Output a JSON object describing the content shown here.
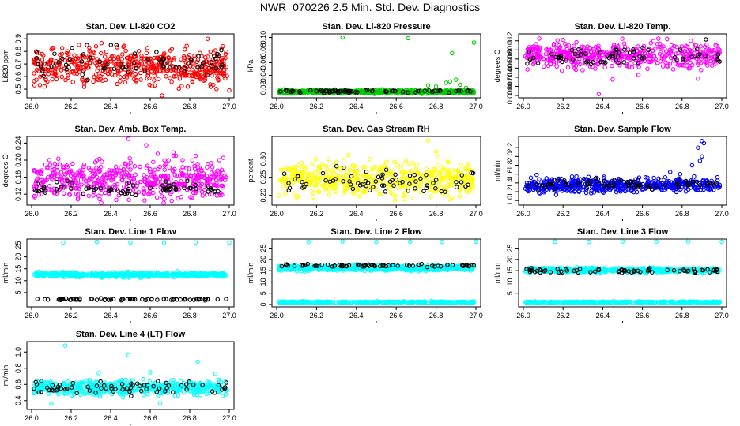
{
  "title": "NWR_070226  2.5 Min. Std. Dev. Diagnostics",
  "chart_data": [
    {
      "type": "scatter",
      "title": "Stan. Dev. Li-820 CO2",
      "ylabel": "Li820 ppm",
      "color": "#ff0000",
      "xlim": [
        26.0,
        27.0
      ],
      "ylim": [
        0.45,
        0.92
      ],
      "yticks": [
        0.5,
        0.6,
        0.7,
        0.8,
        0.9
      ],
      "ytick_labels": [
        "0.5",
        "0.6",
        "0.7",
        "0.8",
        "0.9"
      ],
      "xticks": [
        26.0,
        26.2,
        26.4,
        26.6,
        26.8,
        27.0
      ],
      "xtick_labels": [
        "26.0",
        "26.2",
        "26.4",
        "26.6",
        "26.8",
        "27.0"
      ],
      "series": [
        {
          "name": "main",
          "center": 0.68,
          "spread": 0.07,
          "extras": [
            [
              26.08,
              0.56
            ],
            [
              26.33,
              0.58
            ],
            [
              26.62,
              0.57
            ],
            [
              26.66,
              0.45
            ],
            [
              26.79,
              0.52
            ],
            [
              26.89,
              0.9
            ],
            [
              27.0,
              0.49
            ]
          ]
        },
        {
          "name": "subset",
          "center": 0.7,
          "spread": 0.06,
          "extras": [
            [
              26.28,
              0.85
            ],
            [
              26.96,
              0.81
            ]
          ]
        }
      ]
    },
    {
      "type": "scatter",
      "title": "Stan. Dev. Li-820 Pressure",
      "ylabel": "kPa",
      "color": "#00cc00",
      "xlim": [
        26.0,
        27.0
      ],
      "ylim": [
        0.008,
        0.102
      ],
      "yticks": [
        0.02,
        0.04,
        0.06,
        0.08,
        0.1
      ],
      "ytick_labels": [
        "0.02",
        "0.04",
        "0.06",
        "0.08",
        "0.10"
      ],
      "xticks": [
        26.0,
        26.2,
        26.4,
        26.6,
        26.8,
        27.0
      ],
      "xtick_labels": [
        "26.0",
        "26.2",
        "26.4",
        "26.6",
        "26.8",
        "27.0"
      ],
      "series": [
        {
          "name": "main",
          "center": 0.014,
          "spread": 0.0015,
          "extras": [
            [
              26.33,
              0.1
            ],
            [
              26.66,
              0.099
            ],
            [
              26.88,
              0.075
            ],
            [
              26.99,
              0.092
            ],
            [
              26.85,
              0.028
            ],
            [
              26.9,
              0.033
            ],
            [
              26.92,
              0.025
            ],
            [
              26.8,
              0.022
            ],
            [
              26.76,
              0.024
            ],
            [
              26.95,
              0.02
            ],
            [
              26.87,
              0.03
            ]
          ]
        },
        {
          "name": "subset",
          "center": 0.0145,
          "spread": 0.001,
          "extras": []
        }
      ]
    },
    {
      "type": "scatter",
      "title": "Stan. Dev. Li-820 Temp.",
      "ylabel": "degrees C",
      "color": "#ff00ff",
      "xlim": [
        26.0,
        27.0
      ],
      "ylim": [
        0.0,
        0.013
      ],
      "yticks": [
        0.0,
        0.002,
        0.004,
        0.006,
        0.008,
        0.01,
        0.012
      ],
      "ytick_labels": [
        "0.000",
        "0.002",
        "0.004",
        "0.006",
        "0.008",
        "0.010",
        "0.012"
      ],
      "xticks": [
        26.0,
        26.2,
        26.4,
        26.6,
        26.8,
        27.0
      ],
      "xtick_labels": [
        "26.0",
        "26.2",
        "26.4",
        "26.6",
        "26.8",
        "27.0"
      ],
      "series": [
        {
          "name": "main",
          "center": 0.0088,
          "spread": 0.0013,
          "extras": [
            [
              26.38,
              0.0003
            ],
            [
              26.45,
              0.0035
            ],
            [
              26.58,
              0.0045
            ],
            [
              26.88,
              0.0037
            ],
            [
              26.08,
              0.0125
            ],
            [
              26.2,
              0.0122
            ]
          ]
        },
        {
          "name": "subset",
          "center": 0.0085,
          "spread": 0.001,
          "extras": [
            [
              26.92,
              0.0123
            ]
          ]
        }
      ]
    },
    {
      "type": "scatter",
      "title": "Stan. Dev. Amb. Box Temp.",
      "ylabel": "degrees C",
      "color": "#ff00ff",
      "xlim": [
        26.0,
        27.0
      ],
      "ylim": [
        0.1,
        0.25
      ],
      "yticks": [
        0.12,
        0.16,
        0.2,
        0.24
      ],
      "ytick_labels": [
        "0.12",
        "0.16",
        "0.20",
        "0.24"
      ],
      "xticks": [
        26.0,
        26.2,
        26.4,
        26.6,
        26.8,
        27.0
      ],
      "xtick_labels": [
        "26.0",
        "26.2",
        "26.4",
        "26.6",
        "26.8",
        "27.0"
      ],
      "series": [
        {
          "name": "main",
          "center": 0.155,
          "spread": 0.022,
          "extras": [
            [
              26.49,
              0.25
            ],
            [
              26.58,
              0.235
            ],
            [
              26.09,
              0.2
            ],
            [
              26.33,
              0.2
            ],
            [
              26.73,
              0.21
            ],
            [
              26.83,
              0.21
            ],
            [
              26.95,
              0.2
            ],
            [
              26.74,
              0.11
            ]
          ]
        },
        {
          "name": "subset",
          "center": 0.133,
          "spread": 0.008,
          "extras": []
        }
      ]
    },
    {
      "type": "scatter",
      "title": "Stan. Dev. Gas Stream RH",
      "ylabel": "percent",
      "color": "#ffff00",
      "xlim": [
        26.0,
        27.0
      ],
      "ylim": [
        0.18,
        0.355
      ],
      "yticks": [
        0.2,
        0.25,
        0.3
      ],
      "ytick_labels": [
        "0.20",
        "0.25",
        "0.30"
      ],
      "xticks": [
        26.0,
        26.2,
        26.4,
        26.6,
        26.8,
        27.0
      ],
      "xtick_labels": [
        "26.0",
        "26.2",
        "26.4",
        "26.6",
        "26.8",
        "27.0"
      ],
      "series": [
        {
          "name": "main",
          "center": 0.245,
          "spread": 0.022,
          "extras": [
            [
              26.76,
              0.35
            ],
            [
              26.8,
              0.32
            ],
            [
              26.26,
              0.3
            ],
            [
              26.87,
              0.19
            ],
            [
              26.64,
              0.19
            ]
          ]
        },
        {
          "name": "subset",
          "center": 0.24,
          "spread": 0.018,
          "extras": [
            [
              26.3,
              0.28
            ],
            [
              26.55,
              0.27
            ]
          ]
        }
      ]
    },
    {
      "type": "scatter",
      "title": "Stan. Dev. Sample Flow",
      "ylabel": "ml/min",
      "color": "#0000ff",
      "xlim": [
        26.0,
        27.0
      ],
      "ylim": [
        0.95,
        2.4
      ],
      "yticks": [
        1.0,
        1.2,
        1.4,
        1.6,
        1.8,
        2.0,
        2.2
      ],
      "ytick_labels": [
        "1.0",
        "1.2",
        "1.4",
        "1.6",
        "1.8",
        "2.0",
        "2.2"
      ],
      "xticks": [
        26.0,
        26.2,
        26.4,
        26.6,
        26.8,
        27.0
      ],
      "xtick_labels": [
        "26.0",
        "26.2",
        "26.4",
        "26.6",
        "26.8",
        "27.0"
      ],
      "series": [
        {
          "name": "main",
          "center": 1.35,
          "spread": 0.08,
          "extras": [
            [
              26.9,
              2.35
            ],
            [
              26.91,
              2.3
            ],
            [
              26.88,
              2.2
            ],
            [
              26.9,
              2.0
            ],
            [
              26.85,
              1.8
            ],
            [
              26.89,
              1.9
            ],
            [
              26.79,
              1.6
            ],
            [
              26.74,
              1.65
            ],
            [
              26.86,
              1.55
            ]
          ]
        },
        {
          "name": "subset",
          "center": 1.38,
          "spread": 0.06,
          "extras": []
        }
      ]
    },
    {
      "type": "scatter",
      "title": "Stan. Dev. Line 1 Flow",
      "ylabel": "ml/min",
      "color": "#00ffff",
      "xlim": [
        26.0,
        27.0
      ],
      "ylim": [
        0,
        26.5
      ],
      "yticks": [
        5,
        10,
        15,
        20,
        25
      ],
      "ytick_labels": [
        "5",
        "10",
        "15",
        "20",
        "25"
      ],
      "xticks": [
        26.0,
        26.2,
        26.4,
        26.6,
        26.8,
        27.0
      ],
      "xtick_labels": [
        "26.0",
        "26.2",
        "26.4",
        "26.6",
        "26.8",
        "27.0"
      ],
      "series": [
        {
          "name": "main",
          "center": 12.5,
          "spread": 0.5,
          "extras": [
            [
              26.16,
              26
            ],
            [
              26.33,
              26.3
            ],
            [
              26.5,
              26
            ],
            [
              26.67,
              25.8
            ],
            [
              26.83,
              26.1
            ],
            [
              27.0,
              26
            ]
          ]
        },
        {
          "name": "subset",
          "center": 2.2,
          "spread": 0.2,
          "extras": []
        }
      ]
    },
    {
      "type": "scatter",
      "title": "Stan. Dev. Line 2 Flow",
      "ylabel": "ml/min",
      "color": "#00ffff",
      "xlim": [
        26.0,
        27.0
      ],
      "ylim": [
        0,
        28
      ],
      "yticks": [
        0,
        5,
        10,
        15,
        20,
        25
      ],
      "ytick_labels": [
        "0",
        "5",
        "10",
        "15",
        "20",
        "25"
      ],
      "xticks": [
        26.0,
        26.2,
        26.4,
        26.6,
        26.8,
        27.0
      ],
      "xtick_labels": [
        "26.0",
        "26.2",
        "26.4",
        "26.6",
        "26.8",
        "27.0"
      ],
      "series": [
        {
          "name": "main",
          "center": 16.2,
          "spread": 0.6,
          "extras": [
            [
              26.16,
              27.8
            ],
            [
              26.33,
              28
            ],
            [
              26.5,
              27.8
            ],
            [
              26.67,
              27.9
            ],
            [
              26.83,
              27.8
            ],
            [
              27.0,
              27.9
            ]
          ]
        },
        {
          "name": "floor",
          "center": 1.0,
          "spread": 0.2,
          "extras": []
        },
        {
          "name": "subset",
          "center": 17.3,
          "spread": 0.3,
          "extras": []
        }
      ]
    },
    {
      "type": "scatter",
      "title": "Stan. Dev. Line 3 Flow",
      "ylabel": "ml/min",
      "color": "#00ffff",
      "xlim": [
        26.0,
        27.0
      ],
      "ylim": [
        0,
        28
      ],
      "yticks": [
        5,
        10,
        15,
        20,
        25
      ],
      "ytick_labels": [
        "5",
        "10",
        "15",
        "20",
        "25"
      ],
      "xticks": [
        26.0,
        26.2,
        26.4,
        26.6,
        26.8,
        27.0
      ],
      "xtick_labels": [
        "26.0",
        "26.2",
        "26.4",
        "26.6",
        "26.8",
        "27.0"
      ],
      "series": [
        {
          "name": "main",
          "center": 15.3,
          "spread": 0.5,
          "extras": [
            [
              26.16,
              27.9
            ],
            [
              26.33,
              27.8
            ],
            [
              26.5,
              28
            ],
            [
              26.67,
              27.9
            ],
            [
              26.83,
              28
            ],
            [
              27.0,
              27.8
            ]
          ]
        },
        {
          "name": "floor",
          "center": 1.0,
          "spread": 0.2,
          "extras": []
        },
        {
          "name": "subset",
          "center": 15.0,
          "spread": 0.5,
          "extras": []
        }
      ]
    },
    {
      "type": "scatter",
      "title": "Stan. Dev. Line 4 (LT) Flow",
      "ylabel": "ml/min",
      "color": "#00ffff",
      "xlim": [
        26.0,
        27.0
      ],
      "ylim": [
        0.32,
        1.1
      ],
      "yticks": [
        0.4,
        0.6,
        0.8,
        1.0
      ],
      "ytick_labels": [
        "0.4",
        "0.6",
        "0.8",
        "1.0"
      ],
      "xticks": [
        26.0,
        26.2,
        26.4,
        26.6,
        26.8,
        27.0
      ],
      "xtick_labels": [
        "26.0",
        "26.2",
        "26.4",
        "26.6",
        "26.8",
        "27.0"
      ],
      "series": [
        {
          "name": "main",
          "center": 0.56,
          "spread": 0.045,
          "extras": [
            [
              26.17,
              1.08
            ],
            [
              26.49,
              0.96
            ],
            [
              26.84,
              0.88
            ],
            [
              26.34,
              0.74
            ],
            [
              26.6,
              0.75
            ],
            [
              26.93,
              0.73
            ],
            [
              26.1,
              0.36
            ],
            [
              26.65,
              0.37
            ]
          ]
        },
        {
          "name": "subset",
          "center": 0.56,
          "spread": 0.04,
          "extras": []
        }
      ]
    }
  ]
}
